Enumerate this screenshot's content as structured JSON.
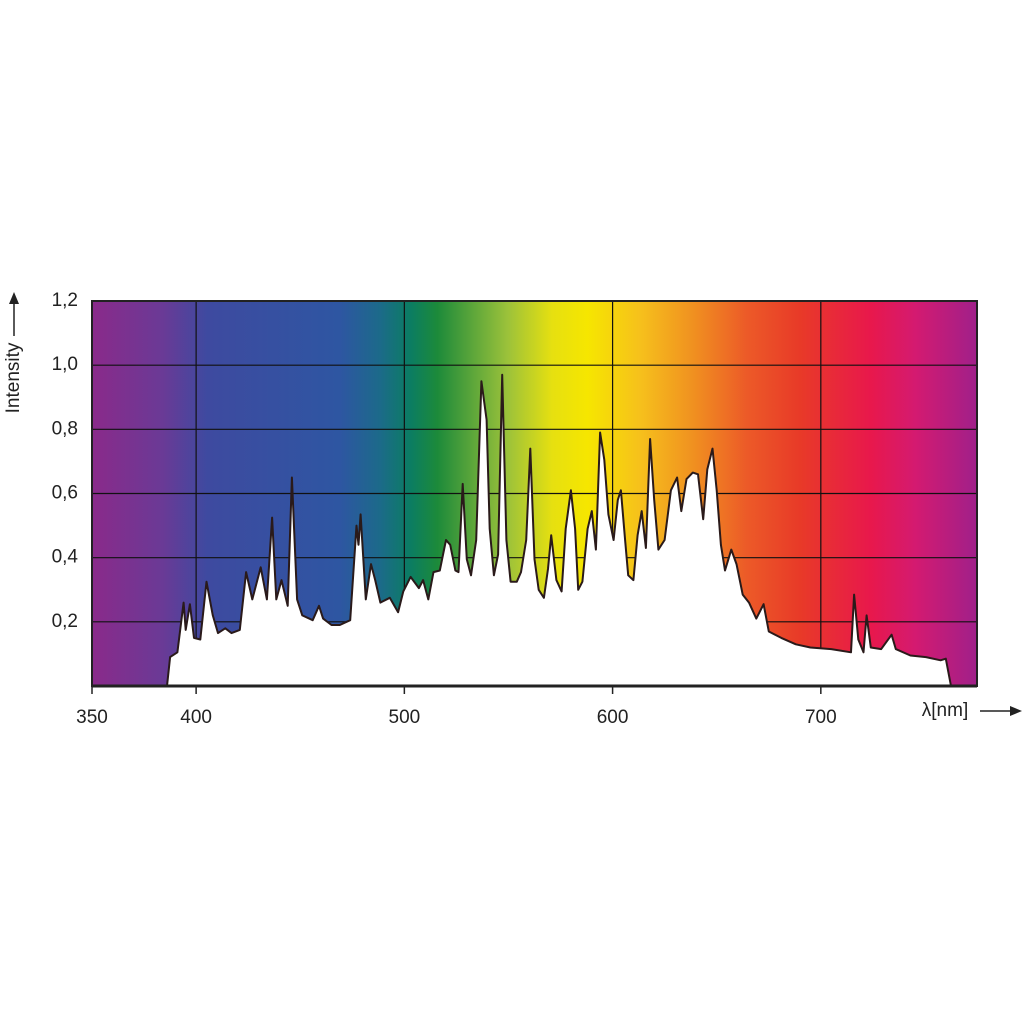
{
  "chart_data": {
    "type": "area",
    "x_label": "λ[nm]",
    "y_label": "Intensity",
    "xlim": [
      350,
      775
    ],
    "ylim": [
      0,
      1.2
    ],
    "xticks": [
      350,
      400,
      500,
      600,
      700
    ],
    "yticks": [
      {
        "value": 0.2,
        "label": "0,2"
      },
      {
        "value": 0.4,
        "label": "0,4"
      },
      {
        "value": 0.6,
        "label": "0,6"
      },
      {
        "value": 0.8,
        "label": "0,8"
      },
      {
        "value": 1.0,
        "label": "1,0"
      },
      {
        "value": 1.2,
        "label": "1,2"
      }
    ],
    "grid": true,
    "series": [
      {
        "color": "#2a1a1a",
        "x": [
          386,
          387.5,
          391,
          394,
          395,
          397,
          399,
          402,
          405,
          408,
          410.5,
          414,
          417,
          421,
          424,
          427,
          431,
          434,
          436.5,
          438.5,
          441,
          444,
          446,
          448.5,
          451,
          456,
          459,
          461,
          465,
          469,
          474,
          477,
          478,
          479,
          481.5,
          484,
          486,
          488.5,
          493,
          497,
          499.5,
          503,
          507,
          509,
          511.5,
          514,
          517,
          520,
          522,
          524.5,
          526,
          528,
          530,
          532,
          534.5,
          537,
          539.5,
          541,
          543,
          545,
          547,
          549,
          551,
          554,
          556,
          558.5,
          560.5,
          562.5,
          564.5,
          567,
          569,
          570.5,
          573,
          575.5,
          577.5,
          580,
          582,
          583.5,
          585.5,
          588,
          590,
          592,
          594,
          596,
          598,
          600.5,
          602.5,
          604,
          606,
          607.5,
          610,
          612,
          614,
          616,
          618,
          620,
          622,
          625,
          628,
          631,
          633,
          635.5,
          638.5,
          641,
          643.5,
          645.5,
          648,
          650,
          652,
          654,
          657,
          659.5,
          662.5,
          665.5,
          669,
          672.5,
          675,
          681,
          688,
          695,
          705,
          714.5,
          716,
          718,
          720.5,
          722,
          724,
          729,
          734,
          736,
          743,
          750.5,
          757.5,
          760,
          762.5
        ],
        "values": [
          0,
          0.09,
          0.105,
          0.26,
          0.175,
          0.255,
          0.15,
          0.145,
          0.325,
          0.22,
          0.165,
          0.18,
          0.165,
          0.175,
          0.355,
          0.27,
          0.37,
          0.27,
          0.525,
          0.27,
          0.33,
          0.25,
          0.65,
          0.27,
          0.22,
          0.205,
          0.25,
          0.21,
          0.19,
          0.19,
          0.205,
          0.5,
          0.44,
          0.535,
          0.27,
          0.38,
          0.33,
          0.26,
          0.275,
          0.23,
          0.295,
          0.34,
          0.305,
          0.33,
          0.27,
          0.355,
          0.36,
          0.455,
          0.44,
          0.36,
          0.355,
          0.63,
          0.395,
          0.345,
          0.455,
          0.95,
          0.83,
          0.49,
          0.345,
          0.41,
          0.97,
          0.455,
          0.325,
          0.325,
          0.355,
          0.455,
          0.74,
          0.395,
          0.3,
          0.275,
          0.365,
          0.47,
          0.33,
          0.295,
          0.49,
          0.61,
          0.49,
          0.3,
          0.325,
          0.49,
          0.545,
          0.425,
          0.79,
          0.705,
          0.535,
          0.455,
          0.58,
          0.61,
          0.455,
          0.345,
          0.33,
          0.47,
          0.545,
          0.43,
          0.77,
          0.58,
          0.425,
          0.455,
          0.61,
          0.65,
          0.545,
          0.645,
          0.665,
          0.66,
          0.52,
          0.675,
          0.74,
          0.61,
          0.44,
          0.36,
          0.425,
          0.38,
          0.285,
          0.26,
          0.21,
          0.255,
          0.17,
          0.15,
          0.13,
          0.12,
          0.115,
          0.105,
          0.285,
          0.145,
          0.105,
          0.22,
          0.12,
          0.115,
          0.16,
          0.115,
          0.095,
          0.09,
          0.08,
          0.085,
          0
        ]
      }
    ]
  }
}
